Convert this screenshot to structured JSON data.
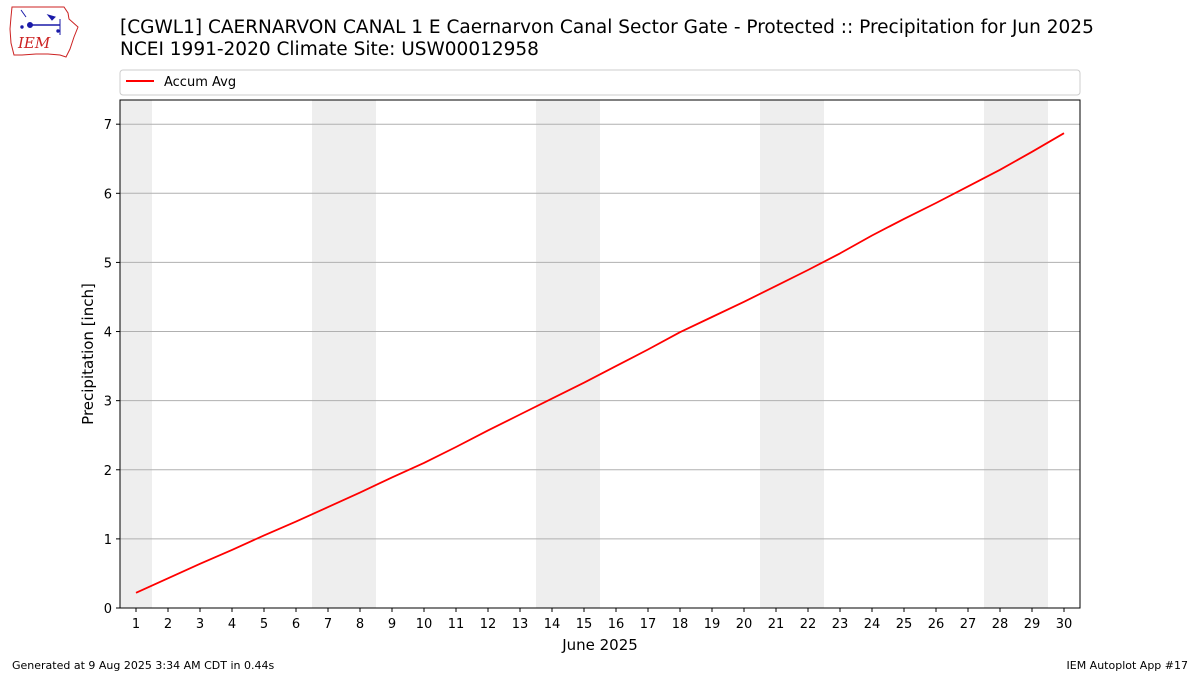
{
  "header": {
    "logo_text": "IEM",
    "title_line1": "[CGWL1] CAERNARVON CANAL 1 E Caernarvon Canal Sector Gate - Protected :: Precipitation for Jun 2025",
    "title_line2": "NCEI 1991-2020 Climate Site: USW00012958"
  },
  "footer": {
    "generated": "Generated at 9 Aug 2025 3:34 AM CDT in 0.44s",
    "app": "IEM Autoplot App #17"
  },
  "colors": {
    "series": "#ff0000",
    "weekend_band": "#eeeeee",
    "grid": "#b0b0b0",
    "logo_red": "#cc2222",
    "logo_blue": "#1a1aa8"
  },
  "chart_data": {
    "type": "line",
    "xlabel": "June 2025",
    "ylabel": "Precipitation [inch]",
    "xlim": [
      0.5,
      30.5
    ],
    "ylim": [
      0,
      7.35
    ],
    "x_ticks": [
      1,
      2,
      3,
      4,
      5,
      6,
      7,
      8,
      9,
      10,
      11,
      12,
      13,
      14,
      15,
      16,
      17,
      18,
      19,
      20,
      21,
      22,
      23,
      24,
      25,
      26,
      27,
      28,
      29,
      30
    ],
    "y_ticks": [
      0,
      1,
      2,
      3,
      4,
      5,
      6,
      7
    ],
    "grid": "horizontal",
    "legend": {
      "position": "top",
      "entries": [
        "Accum Avg"
      ]
    },
    "weekend_days": [
      1,
      7,
      8,
      14,
      15,
      21,
      22,
      28,
      29
    ],
    "series": [
      {
        "name": "Accum Avg",
        "x": [
          1,
          2,
          3,
          4,
          5,
          6,
          7,
          8,
          9,
          10,
          11,
          12,
          13,
          14,
          15,
          16,
          17,
          18,
          19,
          20,
          21,
          22,
          23,
          24,
          25,
          26,
          27,
          28,
          29,
          30
        ],
        "values": [
          0.22,
          0.43,
          0.64,
          0.84,
          1.05,
          1.25,
          1.46,
          1.67,
          1.89,
          2.1,
          2.33,
          2.57,
          2.8,
          3.03,
          3.26,
          3.5,
          3.74,
          3.99,
          4.21,
          4.43,
          4.66,
          4.89,
          5.13,
          5.39,
          5.63,
          5.86,
          6.1,
          6.34,
          6.6,
          6.87
        ]
      }
    ]
  }
}
